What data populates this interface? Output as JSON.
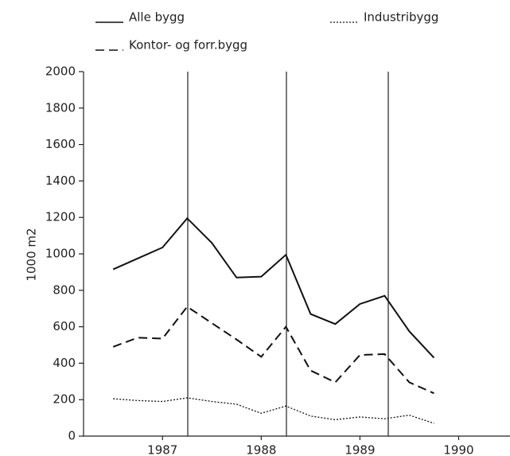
{
  "chart_data": {
    "type": "line",
    "y_label": "1000 m2",
    "x": [
      1986.5,
      1986.75,
      1987.0,
      1987.25,
      1987.5,
      1987.75,
      1988.0,
      1988.25,
      1988.5,
      1988.75,
      1989.0,
      1989.25,
      1989.5,
      1989.75
    ],
    "series": [
      {
        "name": "Alle bygg",
        "color": "#111111",
        "dash": "solid",
        "values": [
          915,
          975,
          1035,
          1195,
          1060,
          870,
          875,
          995,
          670,
          615,
          725,
          770,
          575,
          430
        ]
      },
      {
        "name": "Industribygg",
        "color": "#111111",
        "dash": "dotted",
        "values": [
          205,
          195,
          190,
          210,
          190,
          175,
          125,
          165,
          110,
          90,
          105,
          95,
          115,
          70
        ]
      },
      {
        "name": "Kontor- og forr.bygg",
        "color": "#111111",
        "dash": "dashed",
        "values": [
          490,
          540,
          535,
          710,
          620,
          530,
          435,
          600,
          360,
          295,
          445,
          450,
          295,
          235
        ]
      }
    ],
    "xlim": [
      1986.2,
      1990.52
    ],
    "xticks": [
      1987,
      1988,
      1989,
      1990
    ],
    "ylim": [
      0,
      2000
    ],
    "yticks": [
      0,
      200,
      400,
      600,
      800,
      1000,
      1200,
      1400,
      1600,
      1800,
      2000
    ]
  }
}
